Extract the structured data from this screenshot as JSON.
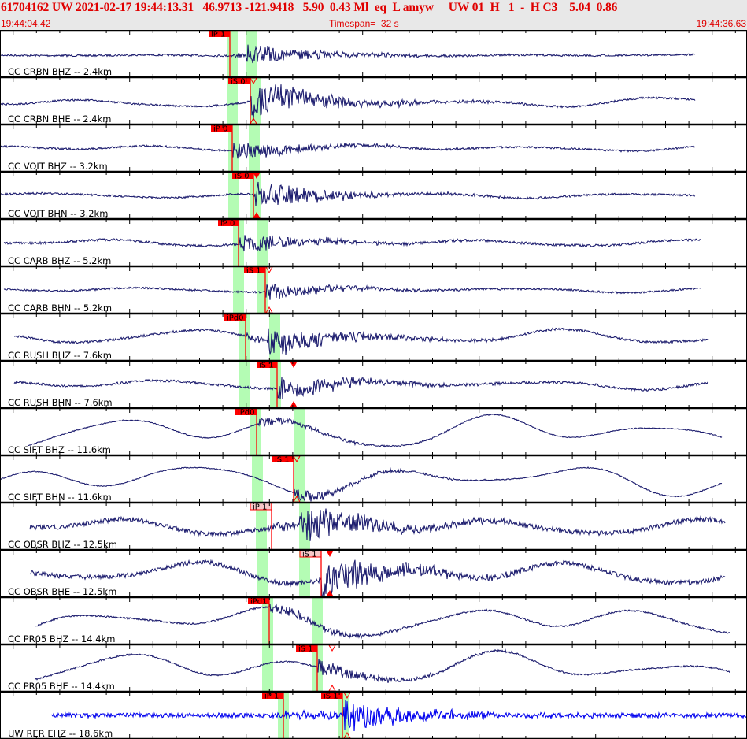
{
  "header": {
    "title": "61704162 UW 2021-02-17 19:44:13.31   46.9713 -121.9418   5.90  0.43 Ml  eq  L amyw     UW 01  H   1  -  H C3    5.04  0.86",
    "start_time": "19:44:04.42",
    "timespan": "Timespan=  32 s",
    "end_time": "19:44:36.63"
  },
  "colors": {
    "header_text": "#e00000",
    "trace": "#1c1c6e",
    "trace_highlight": "#0000ee",
    "pick": "#ff0000",
    "pick_box_secondary": "#f8c8c8",
    "pick_window": "#b4fcb4"
  },
  "traces": [
    {
      "label": "CC CRBN BHZ -- 2.4km",
      "pick": "iP 1"
    },
    {
      "label": "CC CRBN BHE -- 2.4km",
      "pick": "iS 0"
    },
    {
      "label": "CC VOIT BHZ -- 3.2km",
      "pick": "iP 0"
    },
    {
      "label": "CC VOIT BHN -- 3.2km",
      "pick": "iS 0"
    },
    {
      "label": "CC CARB BHZ -- 5.2km",
      "pick": "iP 0"
    },
    {
      "label": "CC CARB BHN -- 5.2km",
      "pick": "iS 1"
    },
    {
      "label": "CC RUSH BHZ -- 7.6km",
      "pick": "iPd0"
    },
    {
      "label": "CC RUSH BHN -- 7.6km",
      "pick": "iS 1"
    },
    {
      "label": "CC SIFT BHZ -- 11.6km",
      "pick": "iPd0"
    },
    {
      "label": "CC SIFT BHN -- 11.6km",
      "pick": "iS 1"
    },
    {
      "label": "CC OBSR BHZ -- 12.5km",
      "pick": "iP 1"
    },
    {
      "label": "CC OBSR BHE -- 12.5km",
      "pick": "iS 1"
    },
    {
      "label": "CC PR05 BHZ -- 14.4km",
      "pick": "iPd1"
    },
    {
      "label": "CC PR05 BHE -- 14.4km",
      "pick": "iS 1"
    },
    {
      "label": "UW RER EHZ -- 18.6km",
      "pick": "iP 1",
      "pick2": "iS 1"
    }
  ]
}
